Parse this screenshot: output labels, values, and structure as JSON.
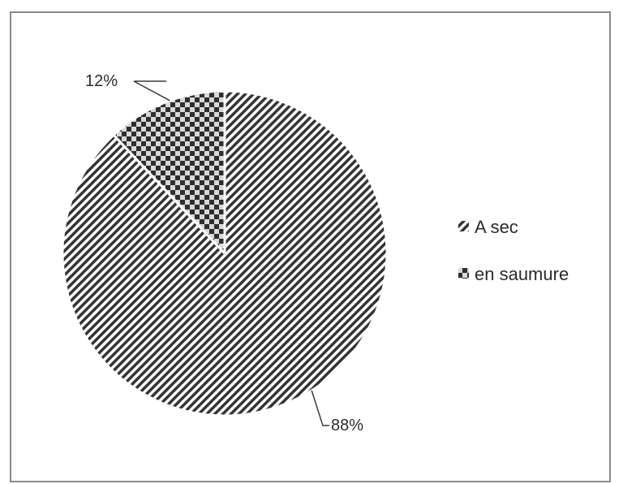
{
  "chart_data": {
    "type": "pie",
    "title": "",
    "slices": [
      {
        "label": "A sec",
        "value": 88,
        "pct_label": "88%",
        "pattern": "diagonal"
      },
      {
        "label": "en saumure",
        "value": 12,
        "pct_label": "12%",
        "pattern": "checker"
      }
    ],
    "legend_placement": "right",
    "colors": {
      "ink": "#3a3a3a",
      "border": "#8a8a8a"
    }
  }
}
